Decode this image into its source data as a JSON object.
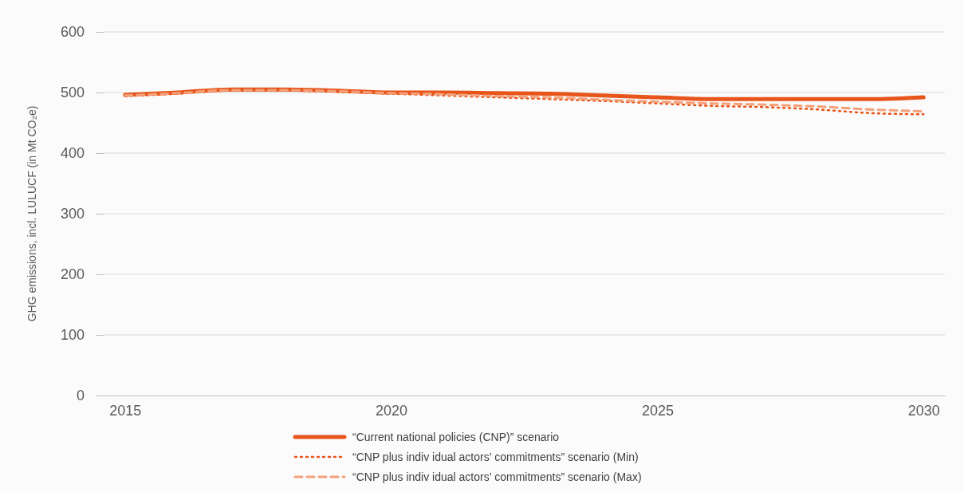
{
  "chart_data": {
    "type": "line",
    "ylabel": "GHG emissions, incl. LULUCF (in Mt CO₂e)",
    "x": [
      2015,
      2016,
      2017,
      2018,
      2019,
      2020,
      2021,
      2022,
      2023,
      2024,
      2025,
      2026,
      2027,
      2028,
      2029,
      2030
    ],
    "xlim": [
      2014.6,
      2030.4
    ],
    "xticks": [
      2015,
      2020,
      2025,
      2030
    ],
    "ylim": [
      0,
      600
    ],
    "yticks": [
      0,
      100,
      200,
      300,
      400,
      500,
      600
    ],
    "grid": "y",
    "legend": "bottom",
    "marker": "none",
    "series": [
      {
        "name": "“Current national policies (CNP)” scenario",
        "color": "#e8551a",
        "line_style": "solid",
        "values": [
          496,
          500,
          505,
          505,
          503,
          500,
          500,
          499,
          498,
          495,
          492,
          489,
          489,
          489,
          489,
          492
        ]
      },
      {
        "name": "“CNP plus indiv idual actors’ commitments” scenario (Min)",
        "color": "#e8551a",
        "line_style": "dotted",
        "values": [
          494,
          498,
          503,
          503,
          501,
          498,
          495,
          492,
          489,
          486,
          482,
          478,
          476,
          472,
          466,
          464
        ]
      },
      {
        "name": "“CNP plus indiv idual actors’ commitments” scenario (Max)",
        "color": "#f4a07a",
        "line_style": "dashed",
        "values": [
          495,
          499,
          504,
          504,
          502,
          499,
          497,
          494,
          492,
          488,
          485,
          482,
          480,
          477,
          472,
          469
        ]
      }
    ]
  }
}
